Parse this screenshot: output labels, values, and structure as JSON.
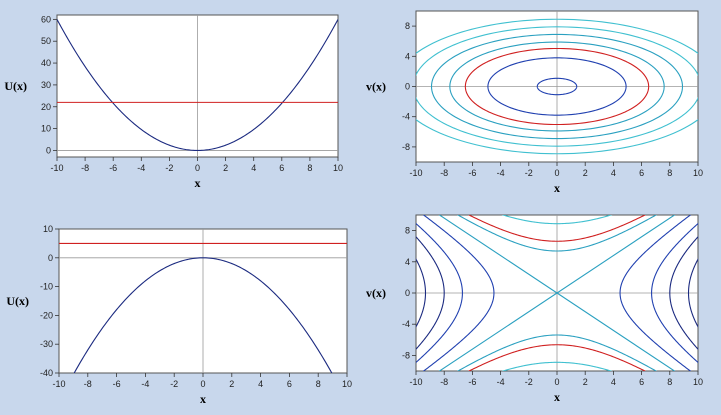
{
  "chart_data": [
    {
      "type": "line",
      "title": "",
      "xlabel": "x",
      "ylabel": "U(x)",
      "xlim": [
        -10,
        10
      ],
      "ylim": [
        -3,
        62
      ],
      "xticks": [
        -10,
        -8,
        -6,
        -4,
        -2,
        0,
        2,
        4,
        6,
        8,
        10
      ],
      "yticks": [
        0,
        10,
        20,
        30,
        40,
        50,
        60
      ],
      "grid": false,
      "series": [
        {
          "function": "U(x) = 0.6 x^2",
          "coefficient": 0.6,
          "color": "#1b2a80"
        },
        {
          "function": "energy level",
          "constant": 22,
          "color": "#d02020"
        }
      ]
    },
    {
      "type": "line",
      "title": "",
      "xlabel": "x",
      "ylabel": "v(x)",
      "xlim": [
        -10,
        10
      ],
      "ylim": [
        -10,
        10
      ],
      "xticks": [
        -10,
        -8,
        -6,
        -4,
        -2,
        0,
        2,
        4,
        6,
        8,
        10
      ],
      "yticks": [
        -8,
        -4,
        0,
        4,
        8
      ],
      "grid": false,
      "series": [
        {
          "function": "ellipse x^2 + v^2/0.6 = r^2",
          "r": 1.4,
          "color": "#2040b0"
        },
        {
          "function": "ellipse",
          "r": 4.9,
          "color": "#2040b0"
        },
        {
          "function": "ellipse",
          "r": 6.5,
          "color": "#d02020"
        },
        {
          "function": "ellipse",
          "r": 7.6,
          "color": "#2aa0c0"
        },
        {
          "function": "ellipse",
          "r": 8.9,
          "color": "#2aa0c0"
        },
        {
          "function": "ellipse",
          "r": 10.2,
          "color": "#40c0d0"
        },
        {
          "function": "ellipse",
          "r": 11.5,
          "color": "#40c0d0"
        }
      ]
    },
    {
      "type": "line",
      "title": "",
      "xlabel": "x",
      "ylabel": "U(x)",
      "xlim": [
        -10,
        10
      ],
      "ylim": [
        -40,
        10
      ],
      "xticks": [
        -10,
        -8,
        -6,
        -4,
        -2,
        0,
        2,
        4,
        6,
        8,
        10
      ],
      "yticks": [
        -40,
        -30,
        -20,
        -10,
        0,
        10
      ],
      "grid": false,
      "series": [
        {
          "function": "U(x) = -0.5 x^2",
          "coefficient": -0.5,
          "color": "#1b2a80"
        },
        {
          "function": "energy level",
          "constant": 5,
          "color": "#d02020"
        }
      ]
    },
    {
      "type": "line",
      "title": "",
      "xlabel": "x",
      "ylabel": "v(x)",
      "xlim": [
        -10,
        10
      ],
      "ylim": [
        -10,
        10
      ],
      "xticks": [
        -10,
        -8,
        -6,
        -4,
        -2,
        0,
        2,
        4,
        6,
        8,
        10
      ],
      "yticks": [
        -8,
        -4,
        0,
        4,
        8
      ],
      "grid": false,
      "separatrix_slope": 1.2,
      "series": [
        {
          "function": "hyperbola |v| = sqrt(1.44 x^2 + a)",
          "a": 44,
          "color": "#d02020"
        },
        {
          "function": "hyperbola",
          "a": 79,
          "color": "#40c0d0"
        },
        {
          "function": "hyperbola",
          "a": 29,
          "color": "#2aa0c0"
        },
        {
          "function": "hyperbola |x| = sqrt(v^2/1.44 + b)",
          "b": 20,
          "color": "#2040b0"
        },
        {
          "function": "hyperbola",
          "b": 45,
          "color": "#2040b0"
        },
        {
          "function": "hyperbola",
          "b": 64,
          "color": "#1b2a80"
        },
        {
          "function": "hyperbola",
          "b": 87,
          "color": "#1b2a80"
        }
      ]
    }
  ]
}
